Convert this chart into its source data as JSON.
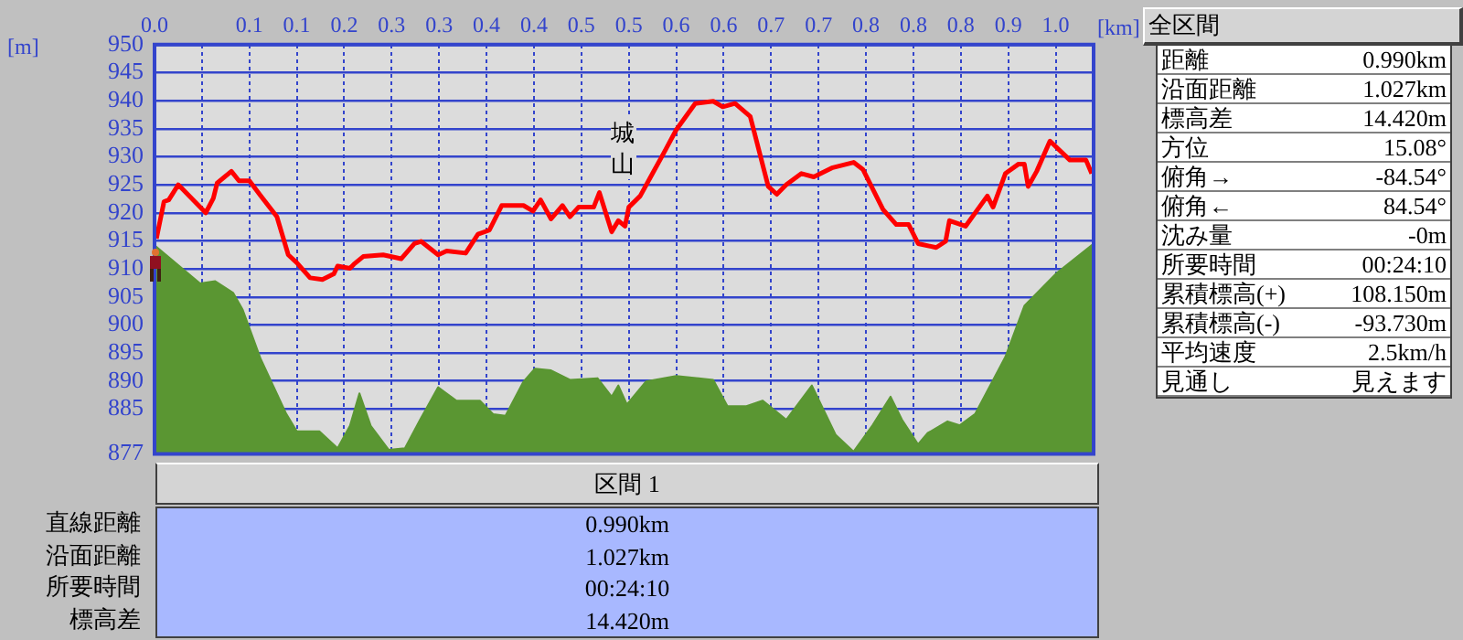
{
  "chart_data": {
    "type": "line",
    "xlabel": "[km]",
    "ylabel": "[m]",
    "xlim": [
      0,
      0.99
    ],
    "xticks": [
      {
        "value": 0,
        "label": "0.0"
      },
      {
        "value": 0.05,
        "label": null
      },
      {
        "value": 0.1,
        "label": "0.1"
      },
      {
        "value": 0.15,
        "label": "0.1"
      },
      {
        "value": 0.2,
        "label": "0.2"
      },
      {
        "value": 0.25,
        "label": "0.3"
      },
      {
        "value": 0.3,
        "label": "0.3"
      },
      {
        "value": 0.35,
        "label": "0.4"
      },
      {
        "value": 0.4,
        "label": "0.4"
      },
      {
        "value": 0.45,
        "label": "0.5"
      },
      {
        "value": 0.5,
        "label": "0.5"
      },
      {
        "value": 0.55,
        "label": "0.6"
      },
      {
        "value": 0.6,
        "label": "0.6"
      },
      {
        "value": 0.65,
        "label": "0.7"
      },
      {
        "value": 0.7,
        "label": "0.7"
      },
      {
        "value": 0.75,
        "label": "0.8"
      },
      {
        "value": 0.8,
        "label": "0.8"
      },
      {
        "value": 0.85,
        "label": "0.8"
      },
      {
        "value": 0.9,
        "label": "0.9"
      },
      {
        "value": 0.95,
        "label": "1.0"
      }
    ],
    "ylim": [
      877,
      950
    ],
    "yticks": [
      877,
      885,
      890,
      895,
      900,
      905,
      910,
      915,
      920,
      925,
      930,
      935,
      940,
      945,
      950
    ],
    "grid": true,
    "marker": "none",
    "legend": false,
    "series": [
      {
        "type": "area",
        "color": "#5a9632",
        "x": [
          0,
          0.048,
          0.064,
          0.083,
          0.093,
          0.112,
          0.139,
          0.15,
          0.174,
          0.193,
          0.206,
          0.216,
          0.228,
          0.247,
          0.264,
          0.28,
          0.299,
          0.318,
          0.343,
          0.357,
          0.37,
          0.389,
          0.401,
          0.418,
          0.438,
          0.467,
          0.482,
          0.489,
          0.498,
          0.518,
          0.55,
          0.589,
          0.604,
          0.624,
          0.641,
          0.666,
          0.693,
          0.718,
          0.737,
          0.757,
          0.776,
          0.788,
          0.805,
          0.815,
          0.836,
          0.849,
          0.865,
          0.897,
          0.917,
          0.95,
          0.99
        ],
        "values": [
          914.2,
          907.4,
          907.8,
          905.7,
          902.7,
          893.9,
          884.1,
          881,
          881,
          878,
          882,
          887.8,
          882,
          877.7,
          878,
          883.1,
          888.9,
          886.5,
          886.5,
          884.1,
          883.8,
          889.9,
          892.2,
          891.9,
          890.2,
          890.5,
          887.2,
          889.2,
          885.8,
          889.9,
          890.9,
          890.2,
          885.5,
          885.5,
          886.5,
          883.1,
          889.2,
          880.4,
          877.4,
          882.1,
          887.2,
          883.1,
          878.7,
          880.7,
          882.8,
          882.1,
          884.1,
          894.3,
          903.4,
          909.1,
          914.5
        ]
      },
      {
        "type": "line",
        "color": "#ff0000",
        "x": [
          0.002,
          0.01,
          0.015,
          0.025,
          0.054,
          0.062,
          0.066,
          0.081,
          0.089,
          0.1,
          0.112,
          0.129,
          0.141,
          0.15,
          0.164,
          0.177,
          0.189,
          0.193,
          0.206,
          0.21,
          0.22,
          0.241,
          0.26,
          0.274,
          0.281,
          0.299,
          0.308,
          0.328,
          0.341,
          0.353,
          0.366,
          0.389,
          0.399,
          0.407,
          0.418,
          0.43,
          0.438,
          0.447,
          0.463,
          0.469,
          0.482,
          0.489,
          0.496,
          0.5,
          0.512,
          0.525,
          0.537,
          0.55,
          0.57,
          0.589,
          0.599,
          0.612,
          0.628,
          0.647,
          0.656,
          0.666,
          0.682,
          0.695,
          0.714,
          0.737,
          0.747,
          0.768,
          0.782,
          0.795,
          0.805,
          0.824,
          0.834,
          0.838,
          0.855,
          0.878,
          0.884,
          0.897,
          0.911,
          0.917,
          0.921,
          0.93,
          0.944,
          0.965,
          0.982,
          0.988
        ],
        "values": [
          915.4,
          922,
          922.3,
          925,
          920,
          922.6,
          925.3,
          927.4,
          925.7,
          925.7,
          923,
          919.3,
          912.5,
          911.1,
          908.4,
          908.1,
          909.1,
          910.5,
          910.1,
          910.8,
          912.2,
          912.5,
          911.8,
          914.5,
          914.9,
          912.5,
          913.2,
          912.8,
          916.2,
          916.9,
          921.3,
          921.3,
          920.3,
          922.3,
          918.9,
          921.3,
          919.3,
          921,
          921,
          923.6,
          916.6,
          918.6,
          917.6,
          921,
          923,
          927,
          930.7,
          934.8,
          939.5,
          939.9,
          938.9,
          939.5,
          937.2,
          924.7,
          923.3,
          925,
          927,
          926.4,
          928,
          929,
          927.7,
          920.6,
          917.9,
          917.9,
          914.5,
          913.8,
          914.9,
          918.6,
          917.6,
          923,
          921,
          927,
          928.7,
          928.7,
          924.7,
          927.4,
          932.8,
          929.4,
          929.4,
          927
        ]
      }
    ],
    "annotations": [
      "城山",
      "全区間",
      "距離",
      "0.990km",
      "沿面距離",
      "1.027km",
      "標高差",
      "14.420m",
      "方位",
      "15.08°",
      "俯角→",
      "-84.54°",
      "俯角←",
      "84.54°",
      "沈み量",
      "-0m",
      "所要時間",
      "00:24:10",
      "累積標高(+)",
      "108.150m",
      "累積標高(-)",
      "-93.730m",
      "平均速度",
      "2.5km/h",
      "見通し",
      "見えます",
      "区間 1",
      "直線距離",
      "0.990km",
      "沿面距離",
      "1.027km",
      "所要時間",
      "00:24:10",
      "標高差",
      "14.420m"
    ]
  }
}
